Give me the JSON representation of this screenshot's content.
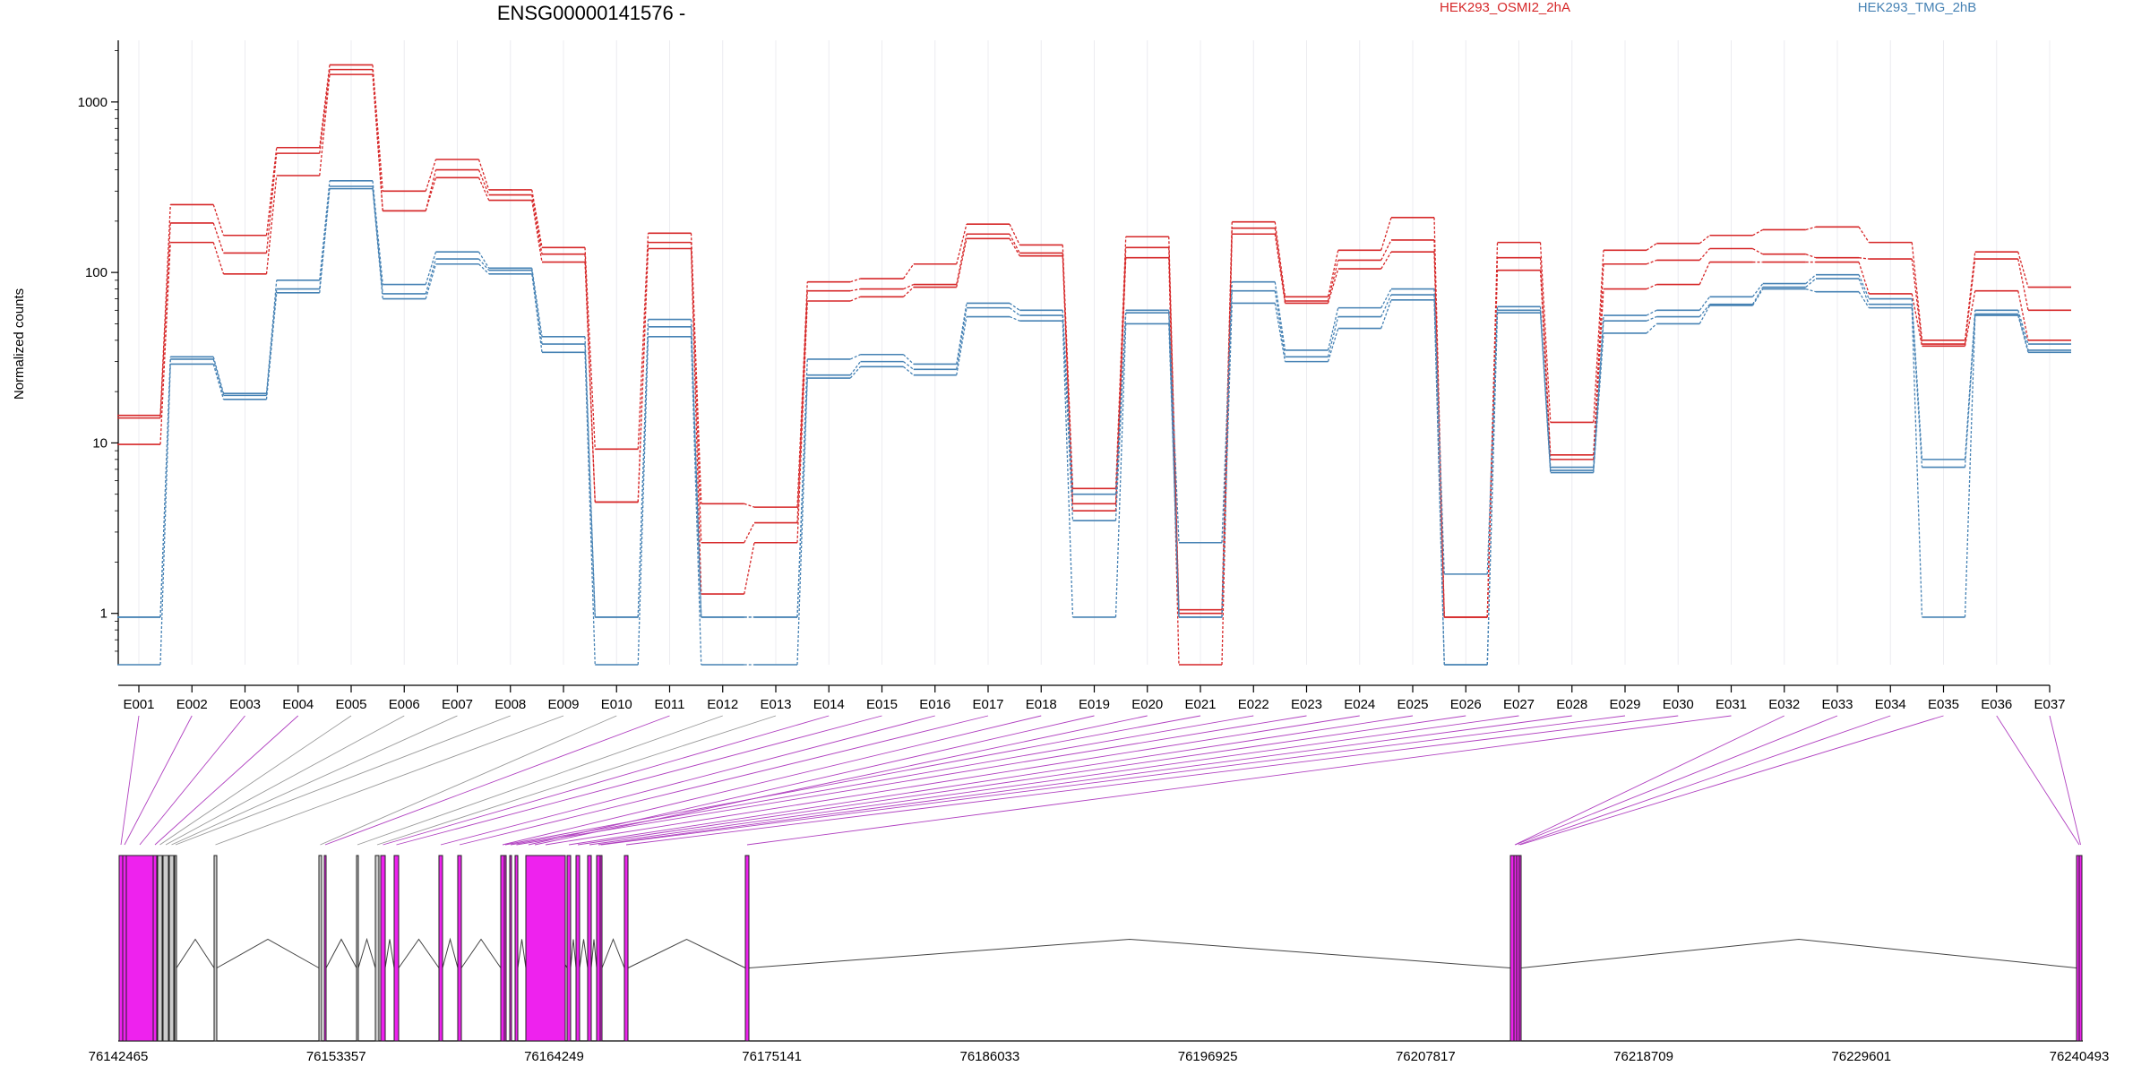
{
  "chart_data": {
    "type": "line",
    "title": "ENSG00000141576 -",
    "ylabel": "Normalized counts",
    "yscale": "log",
    "ylim": [
      0.5,
      2300
    ],
    "yticks": [
      "1",
      "10",
      "100",
      "1000"
    ],
    "legend_position": "top-right",
    "categories": [
      "E001",
      "E002",
      "E003",
      "E004",
      "E005",
      "E006",
      "E007",
      "E008",
      "E009",
      "E010",
      "E011",
      "E012",
      "E013",
      "E014",
      "E015",
      "E016",
      "E017",
      "E018",
      "E019",
      "E020",
      "E021",
      "E022",
      "E023",
      "E024",
      "E025",
      "E026",
      "E027",
      "E028",
      "E029",
      "E030",
      "E031",
      "E032",
      "E033",
      "E034",
      "E035",
      "E036",
      "E037"
    ],
    "series": [
      {
        "name": "HEK293_OSMI2_2hA",
        "color": "#d62728",
        "group": "HEK293_OSMI2_2hA",
        "values": [
          14.5,
          250,
          165,
          540,
          1650,
          300,
          460,
          305,
          140,
          9.2,
          170,
          4.4,
          4.2,
          88,
          92,
          112,
          192,
          145,
          5.4,
          162,
          1.05,
          198,
          72,
          135,
          210,
          0.95,
          150,
          13.2,
          135,
          148,
          165,
          178,
          185,
          150,
          40,
          132,
          82
        ]
      },
      {
        "name": "",
        "color": "#d62728",
        "group": "HEK293_OSMI2_2hA",
        "values": [
          14,
          195,
          130,
          500,
          1550,
          230,
          400,
          285,
          128,
          4.5,
          150,
          2.6,
          3.4,
          78,
          80,
          85,
          168,
          130,
          4.4,
          140,
          1.0,
          182,
          68,
          118,
          155,
          0.95,
          122,
          8.5,
          112,
          118,
          138,
          128,
          122,
          120,
          38,
          120,
          60
        ]
      },
      {
        "name": "",
        "color": "#d62728",
        "group": "HEK293_OSMI2_2hA",
        "values": [
          9.8,
          150,
          98,
          370,
          1450,
          230,
          360,
          265,
          115,
          4.5,
          138,
          1.3,
          2.6,
          68,
          72,
          82,
          158,
          125,
          4.0,
          122,
          0.5,
          168,
          66,
          105,
          132,
          0.95,
          103,
          8.0,
          80,
          85,
          115,
          115,
          115,
          75,
          37,
          78,
          40
        ]
      },
      {
        "name": "HEK293_TMG_2hB",
        "color": "#4682b4",
        "group": "HEK293_TMG_2hB",
        "values": [
          0.95,
          32,
          19.5,
          90,
          345,
          85,
          132,
          106,
          42,
          0.95,
          53,
          0.95,
          0.95,
          31,
          33,
          29,
          66,
          60,
          5.0,
          60,
          2.6,
          88,
          35,
          62,
          80,
          1.7,
          63,
          7.2,
          56,
          60,
          72,
          86,
          97,
          70,
          8,
          60,
          38
        ]
      },
      {
        "name": "",
        "color": "#4682b4",
        "group": "HEK293_TMG_2hB",
        "values": [
          0.95,
          31,
          19,
          80,
          320,
          75,
          120,
          103,
          38,
          0.95,
          48,
          0.95,
          0.95,
          25,
          30,
          27,
          62,
          56,
          3.5,
          58,
          0.95,
          78,
          32,
          55,
          74,
          0.5,
          60,
          6.9,
          52,
          55,
          65,
          82,
          92,
          65,
          7.2,
          57,
          35
        ]
      },
      {
        "name": "",
        "color": "#4682b4",
        "group": "HEK293_TMG_2hB",
        "values": [
          0.5,
          29,
          18,
          76,
          310,
          70,
          112,
          98,
          34,
          0.5,
          42,
          0.5,
          0.5,
          24,
          28,
          25,
          55,
          52,
          0.95,
          50,
          0.95,
          66,
          30,
          47,
          69,
          0.5,
          58,
          6.7,
          44,
          50,
          64,
          80,
          77,
          62,
          0.95,
          56,
          34
        ]
      }
    ],
    "gene_model": {
      "coords": [
        "76142465",
        "76153357",
        "76164249",
        "76175141",
        "76186033",
        "76196925",
        "76207817",
        "76218709",
        "76229601",
        "76240493"
      ],
      "exon_colors": [
        "magenta",
        "magenta",
        "magenta",
        "magenta",
        "grey",
        "grey",
        "grey",
        "grey",
        "grey",
        "grey",
        "magenta",
        "grey",
        "grey",
        "magenta",
        "magenta",
        "magenta",
        "magenta",
        "magenta",
        "magenta",
        "magenta",
        "magenta",
        "magenta",
        "magenta",
        "magenta",
        "magenta",
        "magenta",
        "magenta",
        "magenta",
        "magenta",
        "magenta",
        "magenta",
        "magenta",
        "magenta",
        "magenta",
        "magenta",
        "magenta",
        "magenta"
      ],
      "colors": {
        "magenta": "#ee22ee",
        "grey": "#cccccc"
      }
    }
  }
}
